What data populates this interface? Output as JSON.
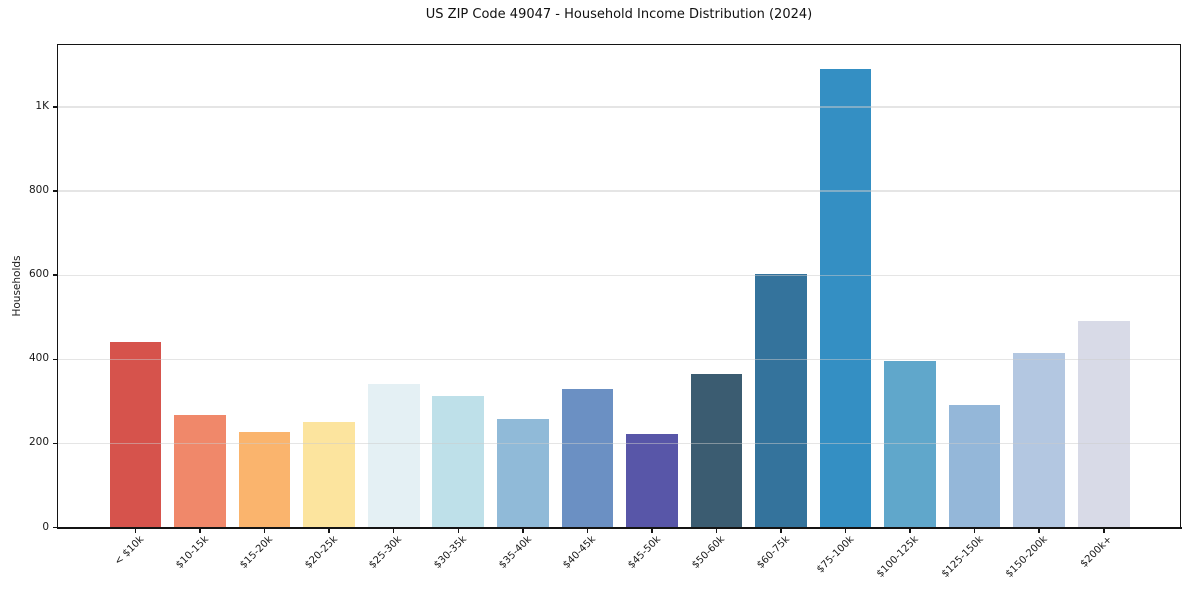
{
  "chart_data": {
    "type": "bar",
    "title": "US ZIP Code 49047 - Household Income Distribution (2024)",
    "xlabel": "",
    "ylabel": "Households",
    "categories": [
      "< $10k",
      "$10-15k",
      "$15-20k",
      "$20-25k",
      "$25-30k",
      "$30-35k",
      "$35-40k",
      "$40-45k",
      "$45-50k",
      "$50-60k",
      "$60-75k",
      "$75-100k",
      "$100-125k",
      "$125-150k",
      "$150-200k",
      "$200k+"
    ],
    "values": [
      440,
      267,
      227,
      251,
      342,
      312,
      258,
      329,
      222,
      365,
      604,
      1090,
      396,
      291,
      414,
      492
    ],
    "bar_colors": [
      "#d6534c",
      "#f0886a",
      "#fab46d",
      "#fce49e",
      "#e4f0f4",
      "#bee0e9",
      "#90bad8",
      "#6b90c3",
      "#5856a8",
      "#3b5c71",
      "#34739c",
      "#348fc3",
      "#60a7cb",
      "#94b7d9",
      "#b3c7e1",
      "#d8dae7"
    ],
    "yticks": [
      {
        "value": 0,
        "label": "0"
      },
      {
        "value": 200,
        "label": "200"
      },
      {
        "value": 400,
        "label": "400"
      },
      {
        "value": 600,
        "label": "600"
      },
      {
        "value": 800,
        "label": "800"
      },
      {
        "value": 1000,
        "label": "1K"
      }
    ],
    "ylim": [
      0,
      1151
    ],
    "grid": "horizontal",
    "legend": "none",
    "background": "#ffffff",
    "text_color": "#1a1a1a"
  }
}
